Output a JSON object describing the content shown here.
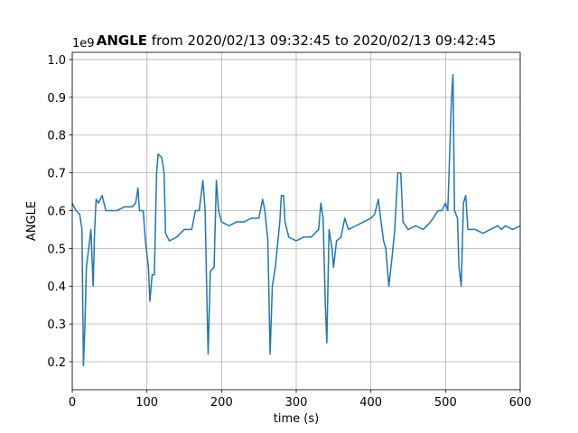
{
  "chart_data": {
    "type": "line",
    "title_bold": "ANGLE",
    "title": "from 2020/02/13 09:32:45 to 2020/02/13 09:42:45",
    "x_label": "time (s)",
    "y_label": "ANGLE",
    "y_offset_text": "1e9",
    "x": [
      0,
      5,
      10,
      13,
      15,
      17,
      19,
      22,
      25,
      28,
      30,
      32,
      35,
      40,
      45,
      50,
      60,
      70,
      80,
      85,
      88,
      90,
      95,
      98,
      102,
      104,
      107,
      110,
      113,
      115,
      120,
      123,
      125,
      130,
      140,
      150,
      160,
      165,
      170,
      175,
      178,
      180,
      182,
      185,
      190,
      193,
      196,
      200,
      210,
      220,
      230,
      240,
      250,
      255,
      258,
      262,
      265,
      268,
      272,
      278,
      280,
      283,
      285,
      290,
      300,
      310,
      320,
      330,
      333,
      336,
      339,
      341,
      344,
      348,
      350,
      354,
      360,
      365,
      370,
      380,
      390,
      400,
      405,
      410,
      413,
      417,
      420,
      424,
      428,
      432,
      436,
      440,
      443,
      450,
      460,
      470,
      480,
      490,
      495,
      500,
      503,
      508,
      510,
      512,
      516,
      518,
      521,
      524,
      527,
      530,
      540,
      550,
      560,
      570,
      575,
      580,
      590,
      600
    ],
    "series": [
      {
        "name": "ANGLE",
        "color": "#1f77b4",
        "values": [
          0.62,
          0.6,
          0.59,
          0.55,
          0.19,
          0.3,
          0.45,
          0.5,
          0.55,
          0.4,
          0.55,
          0.63,
          0.62,
          0.64,
          0.6,
          0.6,
          0.6,
          0.61,
          0.61,
          0.62,
          0.66,
          0.6,
          0.6,
          0.52,
          0.45,
          0.36,
          0.43,
          0.43,
          0.7,
          0.75,
          0.74,
          0.7,
          0.54,
          0.52,
          0.53,
          0.55,
          0.55,
          0.6,
          0.6,
          0.68,
          0.6,
          0.4,
          0.22,
          0.44,
          0.45,
          0.68,
          0.6,
          0.57,
          0.56,
          0.57,
          0.57,
          0.58,
          0.58,
          0.63,
          0.6,
          0.52,
          0.22,
          0.4,
          0.45,
          0.57,
          0.64,
          0.64,
          0.57,
          0.53,
          0.52,
          0.53,
          0.53,
          0.55,
          0.62,
          0.58,
          0.35,
          0.25,
          0.55,
          0.5,
          0.45,
          0.52,
          0.53,
          0.58,
          0.55,
          0.56,
          0.57,
          0.58,
          0.59,
          0.63,
          0.58,
          0.52,
          0.5,
          0.4,
          0.47,
          0.55,
          0.7,
          0.7,
          0.57,
          0.55,
          0.56,
          0.55,
          0.57,
          0.6,
          0.6,
          0.62,
          0.6,
          0.9,
          0.96,
          0.6,
          0.58,
          0.45,
          0.4,
          0.62,
          0.64,
          0.55,
          0.55,
          0.54,
          0.55,
          0.56,
          0.55,
          0.56,
          0.55,
          0.56
        ]
      }
    ],
    "xlim": [
      0,
      600
    ],
    "xticks": [
      0,
      100,
      200,
      300,
      400,
      500,
      600
    ],
    "ylim": [
      0.126,
      1.019
    ],
    "yticks": [
      0.2,
      0.3,
      0.4,
      0.5,
      0.6,
      0.7,
      0.8,
      0.9,
      {
        "value": 1,
        "label": "1.0"
      }
    ],
    "grid": true
  }
}
